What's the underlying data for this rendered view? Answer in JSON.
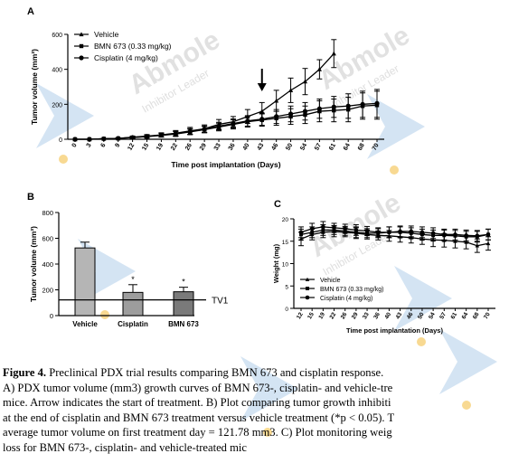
{
  "colors": {
    "ink": "#000000",
    "watermark_blue": "#3a86c8",
    "watermark_gray": "#c9c9c9",
    "watermark_dot": "#f3c04a",
    "bar_vehicle": "#b5b5b5",
    "bar_cisplatin": "#9d9d9d",
    "bar_bmn": "#7a7a7a"
  },
  "watermark": {
    "brand": "Abmole",
    "tagline": "Inhibitor Leader"
  },
  "chart_data": [
    {
      "panel": "A",
      "type": "line",
      "title": "",
      "xlabel": "Time post implantation (Days)",
      "ylabel": "Tumor volume (mm³)",
      "x": [
        0,
        3,
        6,
        9,
        12,
        15,
        19,
        22,
        26,
        29,
        33,
        36,
        40,
        43,
        46,
        50,
        54,
        57,
        61,
        64,
        68,
        70
      ],
      "ylim": [
        0,
        600
      ],
      "yticks": [
        0,
        200,
        400,
        600
      ],
      "legend_position": "top-left",
      "annotation": "arrow at day 43 (start of treatment)",
      "arrow_x": 43,
      "series": [
        {
          "name": "Vehicle",
          "marker": "triangle",
          "values": [
            0,
            0,
            3,
            5,
            12,
            18,
            25,
            35,
            48,
            60,
            85,
            100,
            130,
            160,
            220,
            280,
            330,
            400,
            490,
            null,
            null,
            null
          ],
          "errors": [
            0,
            0,
            2,
            3,
            6,
            9,
            12,
            15,
            20,
            22,
            28,
            30,
            40,
            50,
            60,
            70,
            75,
            55,
            80,
            null,
            null,
            null
          ]
        },
        {
          "name": "BMN 673 (0.33 mg/kg)",
          "marker": "square",
          "values": [
            0,
            0,
            3,
            5,
            10,
            15,
            22,
            30,
            42,
            55,
            70,
            85,
            100,
            110,
            120,
            130,
            140,
            160,
            165,
            170,
            190,
            195
          ],
          "errors": [
            0,
            0,
            2,
            3,
            6,
            8,
            10,
            14,
            16,
            18,
            22,
            26,
            30,
            35,
            40,
            45,
            50,
            60,
            65,
            70,
            75,
            80
          ]
        },
        {
          "name": "Cisplatin (4 mg/kg)",
          "marker": "circle",
          "values": [
            0,
            0,
            3,
            5,
            10,
            16,
            24,
            32,
            45,
            58,
            75,
            90,
            105,
            115,
            130,
            145,
            160,
            175,
            185,
            190,
            200,
            205
          ],
          "errors": [
            0,
            0,
            2,
            3,
            6,
            8,
            10,
            14,
            16,
            18,
            22,
            26,
            30,
            35,
            40,
            45,
            50,
            55,
            60,
            70,
            75,
            80
          ]
        }
      ]
    },
    {
      "panel": "B",
      "type": "bar",
      "title": "",
      "xlabel": "",
      "ylabel": "Tumor volume (mm³)",
      "categories": [
        "Vehicle",
        "Cisplatin",
        "BMN 673"
      ],
      "values": [
        525,
        180,
        185
      ],
      "errors": [
        45,
        60,
        35
      ],
      "significance": [
        "",
        "*",
        "*"
      ],
      "ylim": [
        0,
        800
      ],
      "yticks": [
        0,
        200,
        400,
        600,
        800
      ],
      "reference_line": {
        "label": "TV1",
        "value": 121.78
      }
    },
    {
      "panel": "C",
      "type": "line",
      "title": "",
      "xlabel": "Time post implantation (Days)",
      "ylabel": "Weight (mg)",
      "x": [
        12,
        15,
        19,
        22,
        26,
        29,
        33,
        36,
        40,
        43,
        46,
        50,
        54,
        57,
        61,
        64,
        68,
        70
      ],
      "ylim": [
        0,
        20
      ],
      "yticks": [
        0,
        5,
        10,
        15,
        20
      ],
      "legend_position": "bottom-left",
      "series": [
        {
          "name": "Vehicle",
          "marker": "triangle",
          "values": [
            15.5,
            16.5,
            17.0,
            17.2,
            17.0,
            16.8,
            16.5,
            16.3,
            16.2,
            16.0,
            15.8,
            15.5,
            15.3,
            15.2,
            15.0,
            14.8,
            14.0,
            14.5
          ],
          "errors": [
            1.5,
            1.2,
            1.2,
            1.2,
            1.0,
            1.2,
            1.0,
            1.0,
            1.2,
            1.2,
            1.2,
            1.2,
            1.5,
            1.5,
            1.5,
            1.5,
            1.5,
            1.5
          ]
        },
        {
          "name": "BMN 673 (0.33 mg/kg)",
          "marker": "square",
          "values": [
            16.5,
            17.0,
            17.5,
            17.5,
            17.3,
            17.0,
            16.8,
            16.8,
            17.0,
            17.0,
            16.8,
            16.5,
            16.3,
            16.3,
            16.2,
            16.0,
            16.0,
            16.5
          ],
          "errors": [
            1.2,
            1.2,
            1.2,
            1.0,
            1.0,
            1.2,
            1.0,
            1.0,
            1.2,
            1.2,
            1.2,
            1.2,
            1.2,
            1.2,
            1.2,
            1.2,
            1.2,
            1.2
          ]
        },
        {
          "name": "Cisplatin (4 mg/kg)",
          "marker": "circle",
          "values": [
            17.0,
            17.8,
            18.2,
            18.0,
            17.8,
            17.5,
            17.3,
            17.0,
            17.0,
            17.2,
            17.2,
            17.0,
            16.8,
            16.5,
            16.5,
            16.3,
            16.2,
            16.5
          ],
          "errors": [
            1.2,
            1.2,
            1.2,
            1.0,
            1.0,
            1.2,
            1.0,
            1.0,
            1.2,
            1.2,
            1.2,
            1.2,
            1.2,
            1.2,
            1.2,
            1.2,
            1.2,
            1.2
          ]
        }
      ]
    }
  ],
  "caption": {
    "figure_label": "Figure 4.",
    "lines": [
      " Preclinical PDX trial results comparing BMN 673 and cisplatin response.",
      "A) PDX tumor volume (mm3) growth curves of BMN 673-, cisplatin- and vehicle-tre",
      "mice. Arrow indicates the start of treatment. B) Plot comparing tumor growth inhibiti",
      "at the end of cisplatin and BMN 673 treatment versus vehicle treatment (*p < 0.05). T",
      "average tumor volume on first treatment day = 121.78 mm3. C) Plot monitoring weig",
      "loss for BMN 673-, cisplatin- and vehicle-treated mic"
    ]
  }
}
